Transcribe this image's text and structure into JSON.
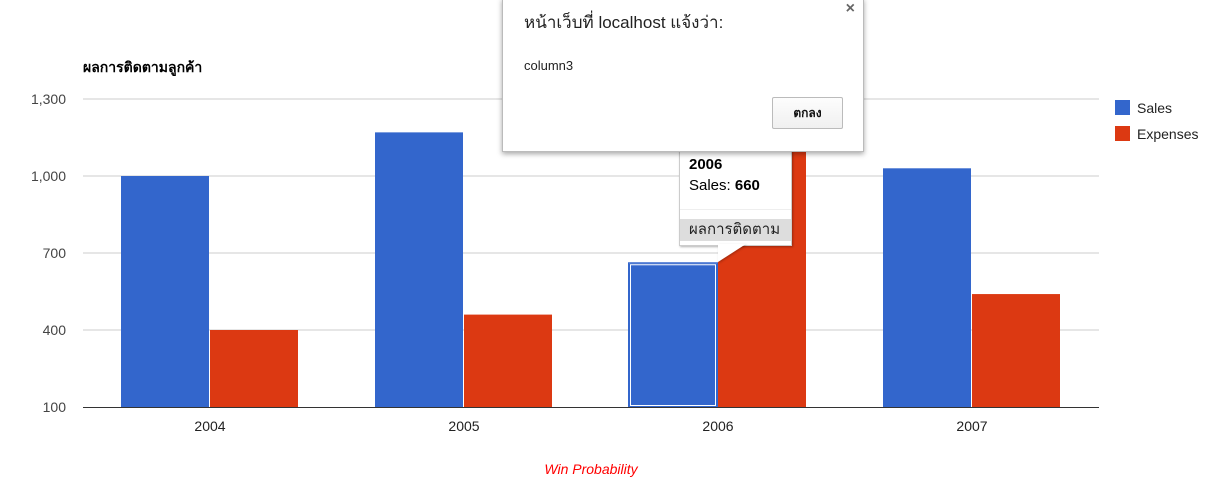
{
  "chart_data": {
    "type": "bar",
    "title": "ผลการติดตามลูกค้า",
    "xlabel": "Win Probability",
    "ylabel": "",
    "categories": [
      "2004",
      "2005",
      "2006",
      "2007"
    ],
    "series": [
      {
        "name": "Sales",
        "color": "#3366cc",
        "values": [
          1000,
          1170,
          660,
          1030
        ]
      },
      {
        "name": "Expenses",
        "color": "#dc3912",
        "values": [
          400,
          460,
          1120,
          540
        ]
      }
    ],
    "ylim": [
      100,
      1300
    ],
    "yticks": [
      100,
      400,
      700,
      1000,
      1300
    ],
    "ytick_labels": [
      "100",
      "400",
      "700",
      "1,000",
      "1,300"
    ],
    "grid": true,
    "legend": "right",
    "xlabel_color": "#ff0000",
    "selected": {
      "category": "2006",
      "series": "Sales"
    }
  },
  "tooltip": {
    "category": "2006",
    "series_label": "Sales: ",
    "value": "660",
    "footer": "ผลการติดตาม"
  },
  "dialog": {
    "title": "หน้าเว็บที่ localhost แจ้งว่า:",
    "message": "column3",
    "ok_label": "ตกลง",
    "close_icon": "×"
  }
}
